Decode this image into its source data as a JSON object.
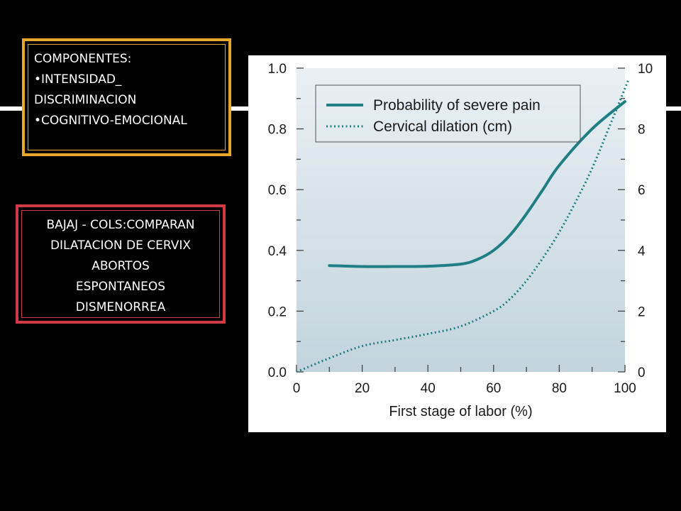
{
  "left_box": {
    "title": "COMPONENTES:",
    "items": [
      "•INTENSIDAD_ DISCRIMINACION",
      "•COGNITIVO-EMOCIONAL"
    ],
    "border_color": "#e7a72b"
  },
  "right_box": {
    "lines": [
      "BAJAJ - COLS:COMPARAN",
      "DILATACION DE CERVIX",
      "ABORTOS",
      "ESPONTANEOS",
      "DISMENORREA"
    ],
    "border_color": "#cf3a45"
  },
  "chart_data": {
    "type": "line",
    "xlabel": "First stage of labor (%)",
    "xlim": [
      0,
      100
    ],
    "ylim_left": [
      0,
      1.0
    ],
    "ylim_right": [
      0,
      10
    ],
    "x_ticks": [
      "0",
      "20",
      "40",
      "60",
      "80",
      "100"
    ],
    "y_ticks_left": [
      "0.0",
      "0.2",
      "0.4",
      "0.6",
      "0.8",
      "1.0"
    ],
    "y_ticks_right": [
      "0",
      "2",
      "4",
      "6",
      "8",
      "10"
    ],
    "legend_position": "top",
    "series_color": "#1f7f85",
    "plot_background": "#ccdbe3",
    "series": [
      {
        "name": "Probability of severe pain",
        "axis": "left",
        "style": "solid",
        "x": [
          10,
          20,
          30,
          40,
          50,
          55,
          60,
          65,
          70,
          75,
          80,
          90,
          100
        ],
        "y": [
          0.35,
          0.347,
          0.347,
          0.348,
          0.355,
          0.37,
          0.4,
          0.45,
          0.52,
          0.6,
          0.68,
          0.8,
          0.89
        ]
      },
      {
        "name": "Cervical dilation (cm)",
        "axis": "right",
        "style": "dotted",
        "x": [
          0,
          10,
          20,
          30,
          40,
          50,
          60,
          65,
          70,
          75,
          80,
          85,
          90,
          95,
          101
        ],
        "y": [
          0,
          0.45,
          0.85,
          1.05,
          1.25,
          1.5,
          2.0,
          2.4,
          3.0,
          3.75,
          4.6,
          5.6,
          6.7,
          8.0,
          9.6
        ]
      }
    ]
  }
}
